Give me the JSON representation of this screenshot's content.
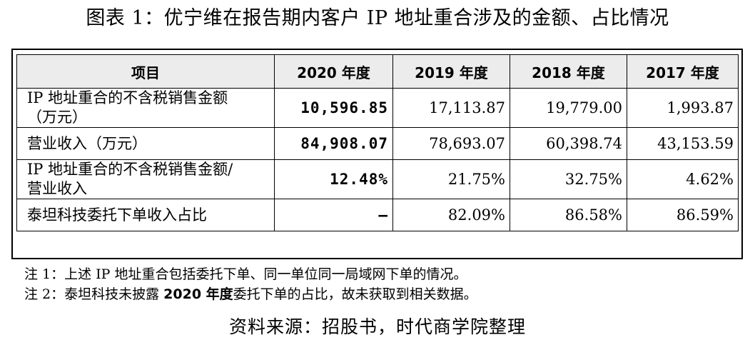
{
  "title": "图表 1：优宁维在报告期内客户 IP 地址重合涉及的金额、占比情况",
  "table": {
    "headers": [
      "项目",
      "2020 年度",
      "2019 年度",
      "2018 年度",
      "2017 年度"
    ],
    "rows": [
      {
        "label_line1": "IP 地址重合的不含税销售金额",
        "label_line2": "（万元）",
        "values": [
          "10,596.85",
          "17,113.87",
          "19,779.00",
          "1,993.87"
        ]
      },
      {
        "label_line1": "营业收入（万元）",
        "label_line2": "",
        "values": [
          "84,908.07",
          "78,693.07",
          "60,398.74",
          "43,153.59"
        ]
      },
      {
        "label_line1": "IP 地址重合的不含税销售金额/",
        "label_line2": "营业收入",
        "values": [
          "12.48%",
          "21.75%",
          "32.75%",
          "4.62%"
        ]
      },
      {
        "label_line1": "泰坦科技委托下单收入占比",
        "label_line2": "",
        "values": [
          "–",
          "82.09%",
          "86.58%",
          "86.59%"
        ]
      }
    ]
  },
  "notes": {
    "note1": "注 1：上述 IP 地址重合包括委托下单、同一单位同一局域网下单的情况。",
    "note2_prefix": "注 2：泰坦科技未披露 ",
    "note2_bold": "2020 年度",
    "note2_suffix": "委托下单的占比，故未获取到相关数据。"
  },
  "source": "资料来源：招股书，时代商学院整理"
}
